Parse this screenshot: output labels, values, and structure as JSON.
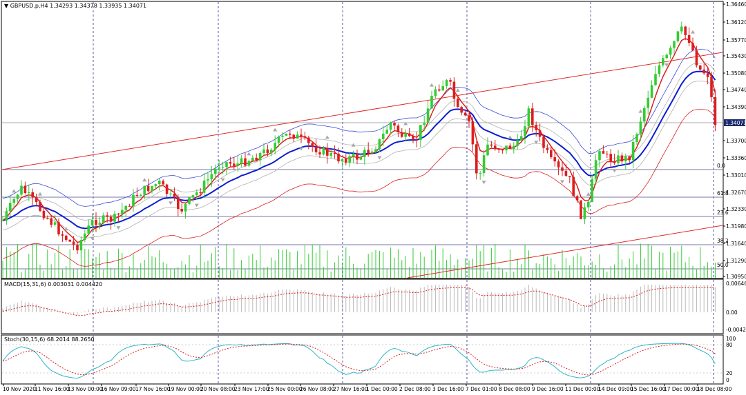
{
  "main_panel": {
    "symbol": "GBPUSD.p,H4",
    "ohlc": "1.34293 1.34378 1.33935 1.34071",
    "current_price": "1.34071",
    "price_labels": [
      "1.36460",
      "1.36120",
      "1.35770",
      "1.35430",
      "1.35080",
      "1.34740",
      "1.34390",
      "1.33700",
      "1.33360",
      "1.33010",
      "1.32670",
      "1.32330",
      "1.31980",
      "1.31640",
      "1.31290",
      "1.30950"
    ],
    "fib_labels": [
      "0.0",
      "61.8",
      "23.6",
      "38.2",
      "50.0"
    ]
  },
  "macd_panel": {
    "title": "MACD(15,31,6) 0.003031 0.004420",
    "scale_labels": [
      "0.00646",
      "0.00",
      "-0.00425"
    ]
  },
  "stoch_panel": {
    "title": "Stoch(30,15,6) 68.2014 88.2650",
    "scale_labels": [
      "100",
      "80",
      "20",
      "0"
    ]
  },
  "time_axis": [
    "10 Nov 2020",
    "11 Nov 16:00",
    "13 Nov 00:00",
    "16 Nov 09:00",
    "17 Nov 16:00",
    "19 Nov 00:00",
    "20 Nov 08:00",
    "23 Nov 17:00",
    "25 Nov 00:00",
    "26 Nov 08:00",
    "27 Nov 16:00",
    "1 Dec 00:00",
    "2 Dec 08:00",
    "3 Dec 16:00",
    "7 Dec 01:00",
    "8 Dec 08:00",
    "9 Dec 16:00",
    "11 Dec 00:00",
    "14 Dec 09:00",
    "15 Dec 16:00",
    "17 Dec 00:00",
    "18 Dec 08:00"
  ],
  "colors": {
    "bull": "#32cd32",
    "bear": "#dc1e1e",
    "ma_slow": "#0b1ed2",
    "ma_fast": "#dc1e1e",
    "envelope": "#b0b0b0",
    "channel": "#e12828",
    "grid": "#2a2a90",
    "level": "#4a4a8a"
  }
}
